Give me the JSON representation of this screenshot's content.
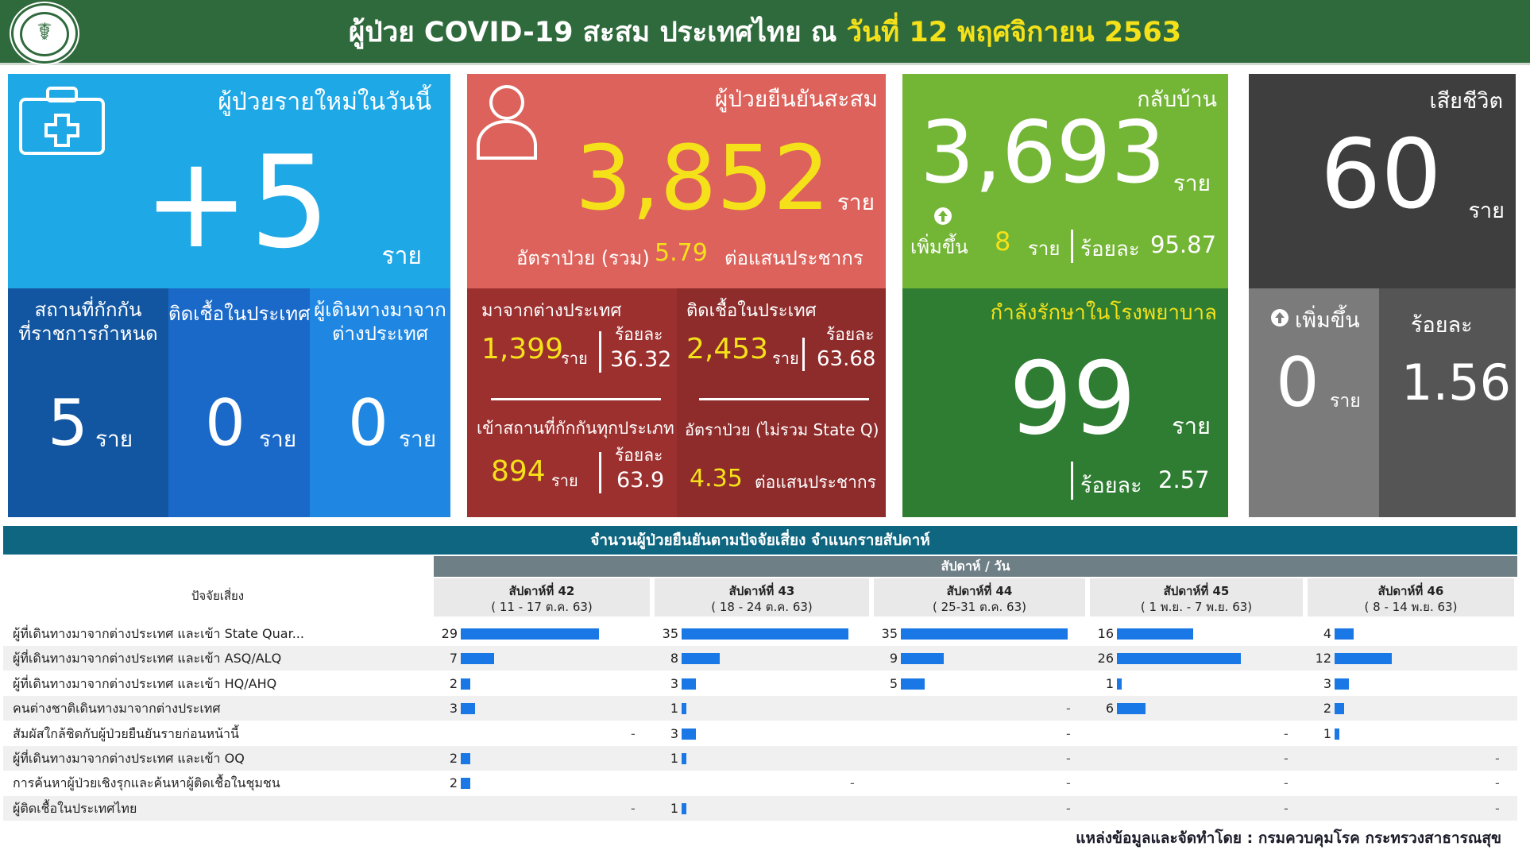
{
  "header": {
    "title_prefix": "ผู้ป่วย COVID-19 สะสม  ประเทศไทย  ณ ",
    "title_date": "วันที่ 12 พฤศจิกายน 2563"
  },
  "new_today": {
    "label": "ผู้ป่วยรายใหม่ในวันนี้",
    "value": "+5",
    "unit": "ราย",
    "sub": [
      {
        "label": "สถานที่กักกัน\nที่ราชการกำหนด",
        "value": "5",
        "unit": "ราย"
      },
      {
        "label": "ติดเชื้อในประเทศ",
        "value": "0",
        "unit": "ราย"
      },
      {
        "label": "ผู้เดินทางมาจาก\nต่างประเทศ",
        "value": "0",
        "unit": "ราย"
      }
    ]
  },
  "confirmed": {
    "label": "ผู้ป่วยยืนยันสะสม",
    "value": "3,852",
    "unit": "ราย",
    "rate_label": "อัตราป่วย (รวม)",
    "rate_value": "5.79",
    "rate_unit": "ต่อแสนประชากร",
    "abroad": {
      "label": "มาจากต่างประเทศ",
      "value": "1,399",
      "unit": "ราย",
      "pct_label": "ร้อยละ",
      "pct": "36.32"
    },
    "domestic": {
      "label": "ติดเชื้อในประเทศ",
      "value": "2,453",
      "unit": "ราย",
      "pct_label": "ร้อยละ",
      "pct": "63.68"
    },
    "quarantine": {
      "label": "เข้าสถานที่กักกันทุกประเภท",
      "value": "894",
      "unit": "ราย",
      "pct_label": "ร้อยละ",
      "pct": "63.9"
    },
    "rate_excl": {
      "label": "อัตราป่วย (ไม่รวม State Q)",
      "value": "4.35",
      "unit": "ต่อแสนประชากร"
    }
  },
  "recovered": {
    "label": "กลับบ้าน",
    "value": "3,693",
    "unit": "ราย",
    "increase_label": "เพิ่มขึ้น",
    "increase_value": "8",
    "increase_unit": "ราย",
    "pct_label": "ร้อยละ",
    "pct": "95.87",
    "hospital_label": "กำลังรักษาในโรงพยาบาล",
    "hospital_value": "99",
    "hospital_unit": "ราย",
    "hospital_pct_label": "ร้อยละ",
    "hospital_pct": "2.57"
  },
  "deaths": {
    "label": "เสียชีวิต",
    "value": "60",
    "unit": "ราย",
    "increase_label": "เพิ่มขึ้น",
    "increase_value": "0",
    "increase_unit": "ราย",
    "pct_label": "ร้อยละ",
    "pct": "1.56"
  },
  "table": {
    "title": "จำนวนผู้ป่วยยืนยันตามปัจจัยเสี่ยง จำแนกรายสัปดาห์",
    "weeks_label": "สัปดาห์ / วัน",
    "factor_header": "ปัจจัยเสี่ยง",
    "weeks": [
      {
        "name": "สัปดาห์ที่ 42",
        "range": "( 11 - 17 ต.ค. 63)"
      },
      {
        "name": "สัปดาห์ที่ 43",
        "range": "( 18 - 24 ต.ค. 63)"
      },
      {
        "name": "สัปดาห์ที่ 44",
        "range": "( 25-31 ต.ค. 63)"
      },
      {
        "name": "สัปดาห์ที่ 45",
        "range": "( 1 พ.ย.  - 7 พ.ย. 63)"
      },
      {
        "name": "สัปดาห์ที่ 46",
        "range": "( 8 - 14 พ.ย. 63)"
      }
    ],
    "empty_mark": "-",
    "rows": [
      {
        "label": "ผู้ที่เดินทางมาจากต่างประเทศ และเข้า State Quar...",
        "values": [
          29,
          35,
          35,
          16,
          4
        ]
      },
      {
        "label": "ผู้ที่เดินทางมาจากต่างประเทศ และเข้า ASQ/ALQ",
        "values": [
          7,
          8,
          9,
          26,
          12
        ]
      },
      {
        "label": "ผู้ที่เดินทางมาจากต่างประเทศ และเข้า HQ/AHQ",
        "values": [
          2,
          3,
          5,
          1,
          3
        ]
      },
      {
        "label": "คนต่างชาติเดินทางมาจากต่างประเทศ",
        "values": [
          3,
          1,
          null,
          6,
          2
        ]
      },
      {
        "label": "สัมผัสใกล้ชิดกับผู้ป่วยยืนยันรายก่อนหน้านี้",
        "values": [
          null,
          3,
          null,
          null,
          1
        ]
      },
      {
        "label": "ผู้ที่เดินทางมาจากต่างประเทศ และเข้า OQ",
        "values": [
          2,
          1,
          null,
          null,
          null
        ]
      },
      {
        "label": "การค้นหาผู้ป่วยเชิงรุกและค้นหาผู้ติดเชื้อในชุมชน",
        "values": [
          2,
          null,
          null,
          null,
          null
        ]
      },
      {
        "label": "ผู้ติดเชื้อในประเทศไทย",
        "values": [
          null,
          1,
          null,
          null,
          null
        ]
      }
    ]
  },
  "source": "แหล่งข้อมูลและจัดทำโดย : กรมควบคุมโรค กระทรวงสาธารณสุข",
  "colors": {
    "header": "#2f6a3c",
    "new_today": "#1ea8e6",
    "confirmed": "#dd625b",
    "recovered": "#73b534",
    "deaths": "#3e3e3e",
    "highlight": "#f5e11a",
    "bar": "#1978e5"
  },
  "icons": [
    "ministry-logo-icon",
    "first-aid-kit-icon",
    "person-icon",
    "arrow-up-icon"
  ]
}
